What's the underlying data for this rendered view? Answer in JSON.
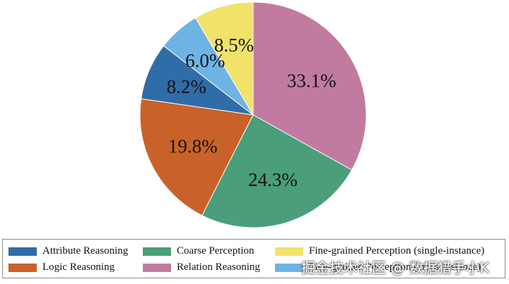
{
  "chart_data": {
    "type": "pie",
    "slices": [
      {
        "name": "Relation Reasoning",
        "value": 33.1,
        "label": "33.1%",
        "color": "#c27ba0"
      },
      {
        "name": "Coarse Perception",
        "value": 24.3,
        "label": "24.3%",
        "color": "#4a9e79"
      },
      {
        "name": "Logic Reasoning",
        "value": 19.8,
        "label": "19.8%",
        "color": "#c8622a"
      },
      {
        "name": "Attribute Reasoning",
        "value": 8.2,
        "label": "8.2%",
        "color": "#2f6da8"
      },
      {
        "name": "Fine-grained Perception (cross-instance)",
        "value": 6.0,
        "label": "6.0%",
        "color": "#6db4e4"
      },
      {
        "name": "Fine-grained Perception (single-instance)",
        "value": 8.5,
        "label": "8.5%",
        "color": "#f2e26a"
      }
    ],
    "start_angle_deg": 0,
    "direction": "clockwise",
    "legend": {
      "placement": "bottom",
      "items": [
        {
          "name": "Attribute Reasoning",
          "color": "#2f6da8"
        },
        {
          "name": "Coarse Perception",
          "color": "#4a9e79"
        },
        {
          "name": "Fine-grained Perception (single-instance)",
          "color": "#f2e26a"
        },
        {
          "name": "Logic Reasoning",
          "color": "#c8622a"
        },
        {
          "name": "Relation Reasoning",
          "color": "#c27ba0"
        },
        {
          "name": "Fine-grained Perception (cross-instance)",
          "color": "#6db4e4"
        }
      ]
    }
  },
  "watermark": "掘金技术社区 @ 数据猎手小K"
}
